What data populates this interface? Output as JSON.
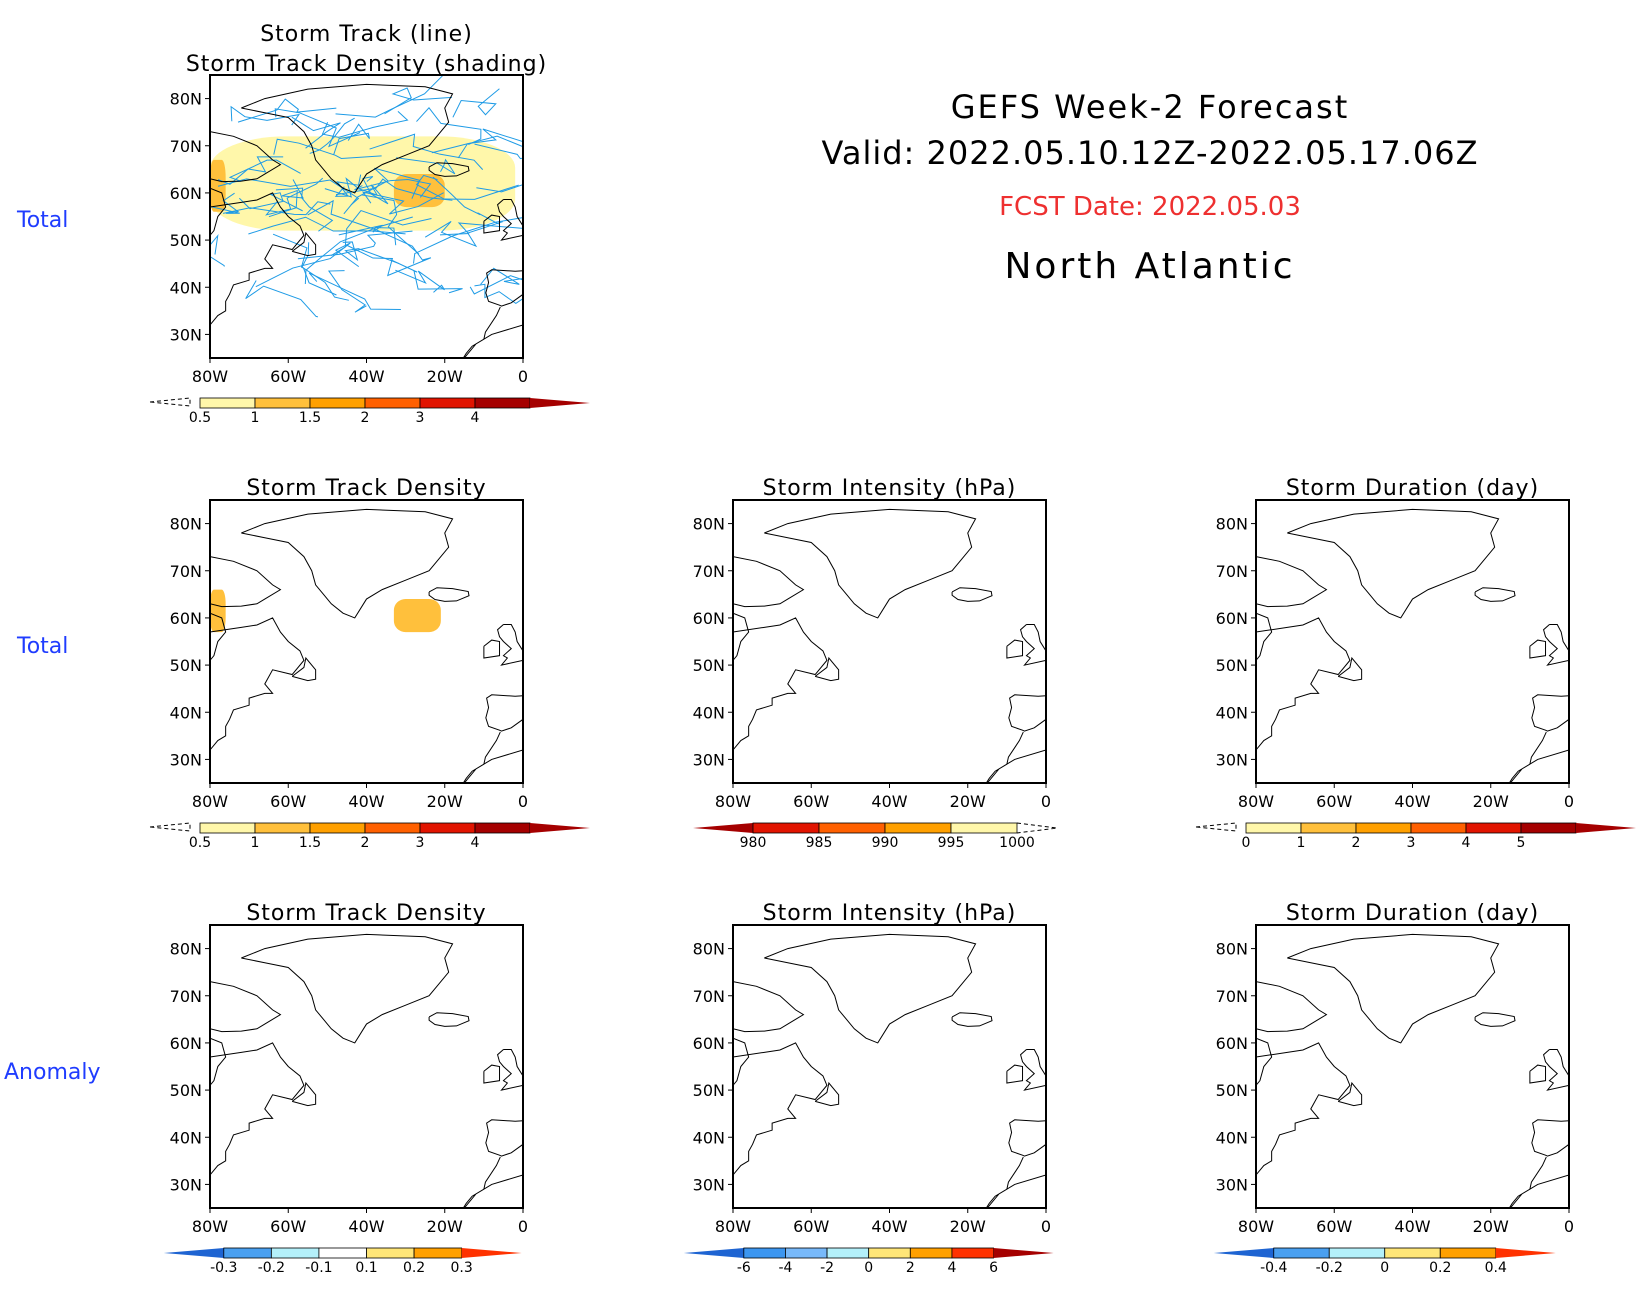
{
  "header": {
    "title": "GEFS Week-2 Forecast",
    "valid": "Valid: 2022.05.10.12Z-2022.05.17.06Z",
    "fcst_date": "FCST Date: 2022.05.03",
    "region": "North Atlantic",
    "fcst_color": "#ee3030"
  },
  "row_labels": [
    "Total",
    "Total",
    "Anomaly"
  ],
  "row_label_color": "#1f3cff",
  "chart_data": [
    {
      "type": "heatmap",
      "id": "track-total",
      "title": "Storm Track (line)",
      "subtitle": "Storm Track Density (shading)",
      "row": "Total",
      "xlabel": "",
      "ylabel": "",
      "xlim": [
        -80,
        0
      ],
      "ylim": [
        25,
        85
      ],
      "xticks": [
        "80W",
        "60W",
        "40W",
        "20W",
        "0"
      ],
      "yticks": [
        "80N",
        "70N",
        "60N",
        "50N",
        "40N",
        "30N"
      ],
      "colorbar": {
        "levels": [
          "0.5",
          "1",
          "1.5",
          "2",
          "3",
          "4"
        ],
        "colors": [
          "#fff7aa",
          "#ffc03c",
          "#ffa000",
          "#ff6000",
          "#e11400",
          "#a50000"
        ],
        "extend": "max"
      },
      "overlay": "storm tracks (blue lines, #1e9be6)",
      "shading": [
        {
          "lon": [
            -80,
            -76
          ],
          "lat": [
            56,
            67
          ],
          "level": "1-1.5"
        },
        {
          "lon": [
            -33,
            -20
          ],
          "lat": [
            57,
            64
          ],
          "level": "1-1.5"
        },
        {
          "lon": [
            -80,
            -2
          ],
          "lat": [
            52,
            72
          ],
          "level": "0.5-1"
        }
      ]
    },
    {
      "type": "heatmap",
      "id": "density-total",
      "title": "Storm Track Density",
      "row": "Total",
      "xlim": [
        -80,
        0
      ],
      "ylim": [
        25,
        85
      ],
      "xticks": [
        "80W",
        "60W",
        "40W",
        "20W",
        "0"
      ],
      "yticks": [
        "80N",
        "70N",
        "60N",
        "50N",
        "40N",
        "30N"
      ],
      "colorbar": {
        "levels": [
          "0.5",
          "1",
          "1.5",
          "2",
          "3",
          "4"
        ],
        "colors": [
          "#fff7aa",
          "#ffc03c",
          "#ffa000",
          "#ff6000",
          "#e11400",
          "#a50000"
        ],
        "extend": "max"
      },
      "shading": [
        {
          "lon": [
            -80,
            -76
          ],
          "lat": [
            57,
            66
          ],
          "level": "1-1.5"
        },
        {
          "lon": [
            -33,
            -21
          ],
          "lat": [
            57,
            64
          ],
          "level": "1-1.5"
        }
      ]
    },
    {
      "type": "heatmap",
      "id": "intensity-total",
      "title": "Storm Intensity (hPa)",
      "row": "Total",
      "xlim": [
        -80,
        0
      ],
      "ylim": [
        25,
        85
      ],
      "xticks": [
        "80W",
        "60W",
        "40W",
        "20W",
        "0"
      ],
      "yticks": [
        "80N",
        "70N",
        "60N",
        "50N",
        "40N",
        "30N"
      ],
      "colorbar": {
        "levels": [
          "980",
          "985",
          "990",
          "995",
          "1000"
        ],
        "colors": [
          "#a50000",
          "#e11400",
          "#ff6000",
          "#ffa000",
          "#fff7aa"
        ],
        "extend": "min"
      }
    },
    {
      "type": "heatmap",
      "id": "duration-total",
      "title": "Storm Duration (day)",
      "row": "Total",
      "xlim": [
        -80,
        0
      ],
      "ylim": [
        25,
        85
      ],
      "xticks": [
        "80W",
        "60W",
        "40W",
        "20W",
        "0"
      ],
      "yticks": [
        "80N",
        "70N",
        "60N",
        "50N",
        "40N",
        "30N"
      ],
      "colorbar": {
        "levels": [
          "0",
          "1",
          "2",
          "3",
          "4",
          "5"
        ],
        "colors": [
          "#fff7aa",
          "#ffc03c",
          "#ffa000",
          "#ff6000",
          "#e11400",
          "#a50000"
        ],
        "extend": "max"
      }
    },
    {
      "type": "heatmap",
      "id": "density-anom",
      "title": "Storm Track Density",
      "row": "Anomaly",
      "xlim": [
        -80,
        0
      ],
      "ylim": [
        25,
        85
      ],
      "xticks": [
        "80W",
        "60W",
        "40W",
        "20W",
        "0"
      ],
      "yticks": [
        "80N",
        "70N",
        "60N",
        "50N",
        "40N",
        "30N"
      ],
      "colorbar": {
        "levels": [
          "-0.3",
          "-0.2",
          "-0.1",
          "0.1",
          "0.2",
          "0.3"
        ],
        "colors": [
          "#1e64d2",
          "#4aa0f0",
          "#b4f0fa",
          "#ffffff",
          "#ffe678",
          "#ffa000",
          "#ff3200"
        ],
        "extend": "both"
      }
    },
    {
      "type": "heatmap",
      "id": "intensity-anom",
      "title": "Storm Intensity (hPa)",
      "row": "Anomaly",
      "xlim": [
        -80,
        0
      ],
      "ylim": [
        25,
        85
      ],
      "xticks": [
        "80W",
        "60W",
        "40W",
        "20W",
        "0"
      ],
      "yticks": [
        "80N",
        "70N",
        "60N",
        "50N",
        "40N",
        "30N"
      ],
      "colorbar": {
        "levels": [
          "-6",
          "-4",
          "-2",
          "0",
          "2",
          "4",
          "6"
        ],
        "colors": [
          "#1e64d2",
          "#3c96f0",
          "#78b9fa",
          "#b4f0fa",
          "#ffe678",
          "#ffa000",
          "#ff3200",
          "#a50000"
        ],
        "extend": "both"
      }
    },
    {
      "type": "heatmap",
      "id": "duration-anom",
      "title": "Storm Duration (day)",
      "row": "Anomaly",
      "xlim": [
        -80,
        0
      ],
      "ylim": [
        25,
        85
      ],
      "xticks": [
        "80W",
        "60W",
        "40W",
        "20W",
        "0"
      ],
      "yticks": [
        "80N",
        "70N",
        "60N",
        "50N",
        "40N",
        "30N"
      ],
      "colorbar": {
        "levels": [
          "-0.4",
          "-0.2",
          "0",
          "0.2",
          "0.4"
        ],
        "colors": [
          "#1e64d2",
          "#4aa0f0",
          "#b4f0fa",
          "#ffe678",
          "#ffa000",
          "#ff3200"
        ],
        "extend": "both"
      }
    }
  ]
}
